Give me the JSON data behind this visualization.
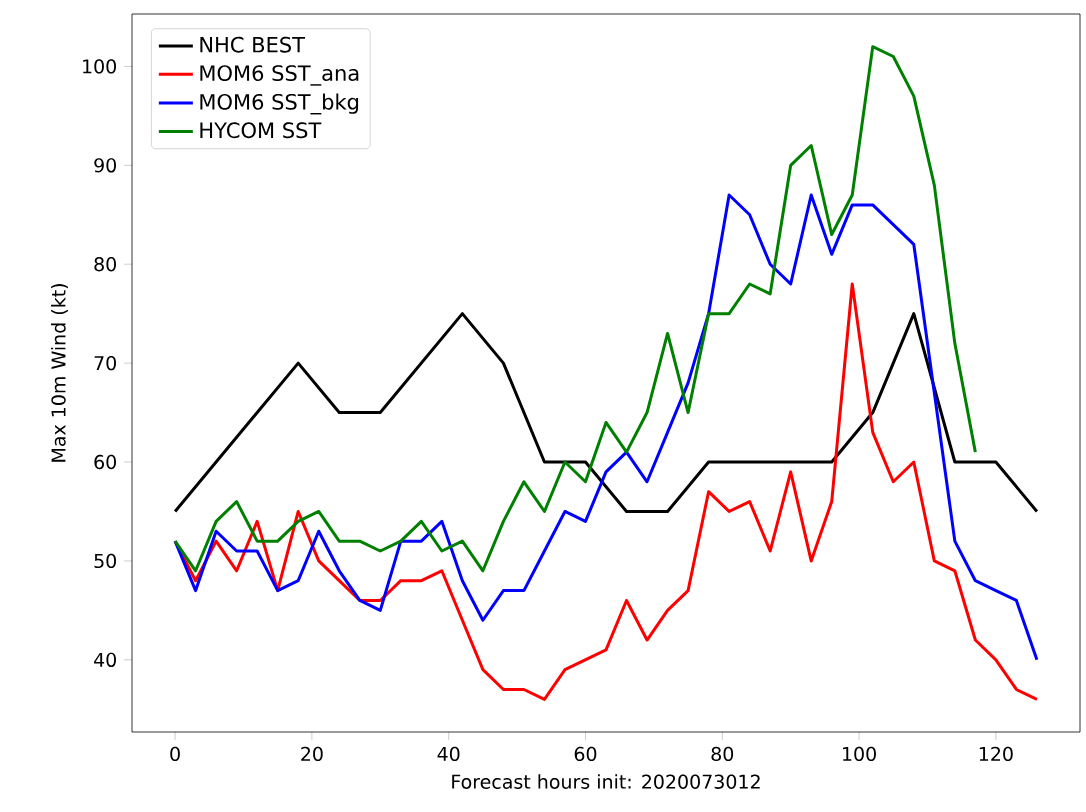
{
  "chart_data": {
    "type": "line",
    "xlabel": "Forecast hours init: 2020073012",
    "ylabel": "Max 10m Wind (kt)",
    "x": [
      0,
      3,
      6,
      9,
      12,
      15,
      18,
      21,
      24,
      27,
      30,
      33,
      36,
      39,
      42,
      45,
      48,
      51,
      54,
      57,
      60,
      63,
      66,
      69,
      72,
      75,
      78,
      81,
      84,
      87,
      90,
      93,
      96,
      99,
      102,
      105,
      108,
      111,
      114,
      117,
      120,
      123,
      126
    ],
    "series": [
      {
        "name": "NHC BEST",
        "color": "#000000",
        "x": [
          0,
          18,
          24,
          30,
          42,
          48,
          54,
          60,
          66,
          72,
          78,
          96,
          102,
          108,
          114,
          120,
          126
        ],
        "values": [
          55,
          70,
          65,
          65,
          75,
          70,
          60,
          60,
          55,
          55,
          60,
          60,
          65,
          75,
          60,
          60,
          55
        ]
      },
      {
        "name": "MOM6 SST_ana",
        "color": "#ff0000",
        "values": [
          52,
          48,
          52,
          49,
          54,
          47,
          55,
          50,
          48,
          46,
          46,
          48,
          48,
          49,
          44,
          39,
          37,
          37,
          36,
          39,
          40,
          41,
          46,
          42,
          45,
          47,
          57,
          55,
          56,
          51,
          59,
          50,
          56,
          78,
          63,
          58,
          60,
          50,
          49,
          42,
          40,
          37,
          36
        ]
      },
      {
        "name": "MOM6 SST_bkg",
        "color": "#0000ff",
        "values": [
          52,
          47,
          53,
          51,
          51,
          47,
          48,
          53,
          49,
          46,
          45,
          52,
          52,
          54,
          48,
          44,
          47,
          47,
          51,
          55,
          54,
          59,
          61,
          58,
          63,
          68,
          75,
          87,
          85,
          80,
          78,
          87,
          81,
          86,
          86,
          84,
          82,
          67,
          52,
          48,
          47,
          46,
          40
        ]
      },
      {
        "name": "HYCOM SST",
        "color": "#008000",
        "x": [
          0,
          3,
          6,
          9,
          12,
          15,
          18,
          21,
          24,
          27,
          30,
          33,
          36,
          39,
          42,
          45,
          48,
          51,
          54,
          57,
          60,
          63,
          66,
          69,
          72,
          75,
          78,
          81,
          84,
          87,
          90,
          93,
          96,
          99,
          102,
          105,
          108,
          111,
          114,
          117
        ],
        "values": [
          52,
          49,
          54,
          56,
          52,
          52,
          54,
          55,
          52,
          52,
          51,
          52,
          54,
          51,
          52,
          49,
          54,
          58,
          55,
          60,
          58,
          64,
          61,
          65,
          73,
          65,
          75,
          75,
          78,
          77,
          90,
          92,
          83,
          87,
          102,
          101,
          97,
          88,
          72,
          61
        ]
      }
    ],
    "xlim": [
      -6.3,
      132.3
    ],
    "ylim": [
      32.7,
      105.3
    ],
    "xticks": [
      0,
      20,
      40,
      60,
      80,
      100,
      120
    ],
    "yticks": [
      40,
      50,
      60,
      70,
      80,
      90,
      100
    ],
    "grid": false,
    "legend": "top left",
    "marker": "none",
    "line_style": "solid"
  }
}
